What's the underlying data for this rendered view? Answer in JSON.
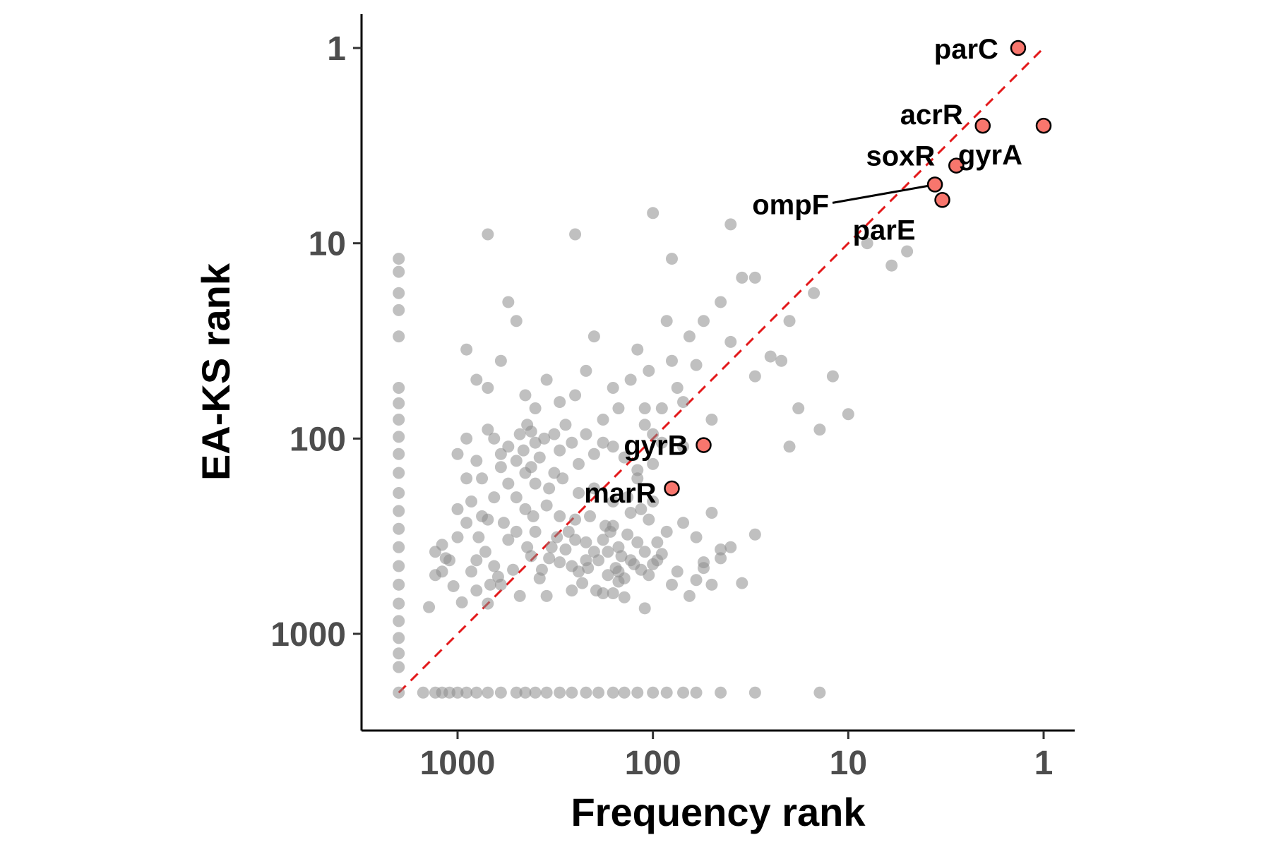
{
  "chart_data": {
    "type": "scatter",
    "title": "",
    "xlabel": "Frequency rank",
    "ylabel": "EA-KS rank",
    "x_scale": "log",
    "y_scale": "log",
    "x_reversed": true,
    "y_reversed": true,
    "xlim": [
      3000,
      0.7
    ],
    "ylim": [
      0.82,
      2000
    ],
    "x_ticks": [
      {
        "value": 1000,
        "label": "1000"
      },
      {
        "value": 100,
        "label": "100"
      },
      {
        "value": 10,
        "label": "10"
      },
      {
        "value": 1,
        "label": "1"
      }
    ],
    "y_ticks": [
      {
        "value": 1,
        "label": "1"
      },
      {
        "value": 10,
        "label": "10"
      },
      {
        "value": 100,
        "label": "100"
      },
      {
        "value": 1000,
        "label": "1000"
      }
    ],
    "grid": false,
    "legend": "none",
    "reference_line": {
      "style": "dashed",
      "color": "#e31a1c",
      "from": [
        2000,
        2000
      ],
      "to": [
        1,
        1
      ]
    },
    "highlight_color": "#f8766d",
    "background_color": "#8c8c8c",
    "highlighted_genes": [
      {
        "name": "parC",
        "x": 1.35,
        "y": 1.0
      },
      {
        "name": "acrR",
        "x": 2.05,
        "y": 2.5
      },
      {
        "name": "gyrA",
        "x": 1.0,
        "y": 2.5
      },
      {
        "name": "soxR",
        "x": 2.8,
        "y": 4.0
      },
      {
        "name": "ompF",
        "x": 3.6,
        "y": 5.0
      },
      {
        "name": "parE",
        "x": 3.3,
        "y": 6.0
      },
      {
        "name": "gyrB",
        "x": 55,
        "y": 108
      },
      {
        "name": "marR",
        "x": 80,
        "y": 180
      }
    ],
    "background_points": [
      [
        2000,
        2000
      ],
      [
        2000,
        1480
      ],
      [
        2000,
        1260
      ],
      [
        2000,
        1050
      ],
      [
        2000,
        860
      ],
      [
        2000,
        700
      ],
      [
        2000,
        560
      ],
      [
        2000,
        450
      ],
      [
        2000,
        360
      ],
      [
        2000,
        290
      ],
      [
        2000,
        235
      ],
      [
        2000,
        190
      ],
      [
        2000,
        150
      ],
      [
        2000,
        120
      ],
      [
        2000,
        98
      ],
      [
        2000,
        80
      ],
      [
        2000,
        66
      ],
      [
        2000,
        55
      ],
      [
        2000,
        30
      ],
      [
        2000,
        22
      ],
      [
        2000,
        18
      ],
      [
        2000,
        14
      ],
      [
        2000,
        12
      ],
      [
        1400,
        730
      ],
      [
        1300,
        380
      ],
      [
        1200,
        480
      ],
      [
        1100,
        420
      ],
      [
        1000,
        320
      ],
      [
        900,
        270
      ],
      [
        800,
        600
      ],
      [
        750,
        250
      ],
      [
        700,
        700
      ],
      [
        650,
        200
      ],
      [
        600,
        560
      ],
      [
        550,
        330
      ],
      [
        500,
        200
      ],
      [
        450,
        150
      ],
      [
        420,
        92
      ],
      [
        400,
        300
      ],
      [
        380,
        520
      ],
      [
        350,
        640
      ],
      [
        330,
        360
      ],
      [
        300,
        250
      ],
      [
        290,
        160
      ],
      [
        260,
        450
      ],
      [
        250,
        330
      ],
      [
        240,
        190
      ],
      [
        220,
        420
      ],
      [
        200,
        380
      ],
      [
        180,
        620
      ],
      [
        170,
        500
      ],
      [
        160,
        280
      ],
      [
        150,
        540
      ],
      [
        140,
        650
      ],
      [
        130,
        240
      ],
      [
        120,
        160
      ],
      [
        110,
        740
      ],
      [
        100,
        210
      ],
      [
        95,
        420
      ],
      [
        90,
        390
      ],
      [
        80,
        560
      ],
      [
        75,
        480
      ],
      [
        70,
        110
      ],
      [
        65,
        640
      ],
      [
        60,
        530
      ],
      [
        55,
        430
      ],
      [
        50,
        560
      ],
      [
        45,
        370
      ],
      [
        40,
        360
      ],
      [
        35,
        550
      ],
      [
        30,
        310
      ],
      [
        1300,
        500
      ],
      [
        1200,
        350
      ],
      [
        1000,
        230
      ],
      [
        900,
        160
      ],
      [
        800,
        420
      ],
      [
        700,
        260
      ],
      [
        650,
        450
      ],
      [
        600,
        120
      ],
      [
        550,
        170
      ],
      [
        500,
        300
      ],
      [
        450,
        230
      ],
      [
        420,
        400
      ],
      [
        400,
        170
      ],
      [
        350,
        220
      ],
      [
        320,
        150
      ],
      [
        300,
        430
      ],
      [
        270,
        300
      ],
      [
        250,
        260
      ],
      [
        240,
        480
      ],
      [
        220,
        340
      ],
      [
        210,
        250
      ],
      [
        200,
        180
      ],
      [
        190,
        420
      ],
      [
        180,
        330
      ],
      [
        170,
        380
      ],
      [
        165,
        300
      ],
      [
        160,
        210
      ],
      [
        155,
        460
      ],
      [
        150,
        360
      ],
      [
        145,
        400
      ],
      [
        140,
        520
      ],
      [
        135,
        310
      ],
      [
        130,
        420
      ],
      [
        125,
        440
      ],
      [
        120,
        340
      ],
      [
        115,
        470
      ],
      [
        110,
        380
      ],
      [
        105,
        500
      ],
      [
        100,
        440
      ],
      [
        1150,
        410
      ],
      [
        1050,
        570
      ],
      [
        950,
        690
      ],
      [
        850,
        480
      ],
      [
        780,
        320
      ],
      [
        720,
        380
      ],
      [
        680,
        560
      ],
      [
        620,
        510
      ],
      [
        580,
        270
      ],
      [
        520,
        470
      ],
      [
        480,
        640
      ],
      [
        440,
        360
      ],
      [
        410,
        250
      ],
      [
        370,
        470
      ],
      [
        340,
        410
      ],
      [
        310,
        320
      ],
      [
        280,
        370
      ],
      [
        260,
        600
      ],
      [
        230,
        550
      ],
      [
        215,
        460
      ],
      [
        195,
        600
      ],
      [
        175,
        280
      ],
      [
        160,
        620
      ],
      [
        150,
        480
      ],
      [
        135,
        200
      ],
      [
        115,
        230
      ],
      [
        105,
        260
      ],
      [
        95,
        340
      ],
      [
        85,
        300
      ],
      [
        70,
        270
      ],
      [
        60,
        320
      ],
      [
        55,
        460
      ],
      [
        50,
        240
      ],
      [
        45,
        410
      ],
      [
        1000,
        120
      ],
      [
        900,
        100
      ],
      [
        850,
        210
      ],
      [
        800,
        130
      ],
      [
        750,
        160
      ],
      [
        700,
        90
      ],
      [
        650,
        100
      ],
      [
        600,
        140
      ],
      [
        550,
        110
      ],
      [
        500,
        130
      ],
      [
        480,
        95
      ],
      [
        460,
        115
      ],
      [
        440,
        85
      ],
      [
        420,
        140
      ],
      [
        400,
        105
      ],
      [
        380,
        125
      ],
      [
        360,
        100
      ],
      [
        340,
        180
      ],
      [
        320,
        95
      ],
      [
        300,
        115
      ],
      [
        280,
        85
      ],
      [
        260,
        105
      ],
      [
        240,
        135
      ],
      [
        220,
        95
      ],
      [
        200,
        120
      ],
      [
        180,
        105
      ],
      [
        160,
        110
      ],
      [
        140,
        125
      ],
      [
        120,
        145
      ],
      [
        110,
        85
      ],
      [
        100,
        135
      ],
      [
        90,
        105
      ],
      [
        130,
        50
      ],
      [
        120,
        35
      ],
      [
        110,
        70
      ],
      [
        105,
        45
      ],
      [
        100,
        95
      ],
      [
        90,
        70
      ],
      [
        85,
        25
      ],
      [
        80,
        40
      ],
      [
        75,
        55
      ],
      [
        70,
        65
      ],
      [
        65,
        30
      ],
      [
        60,
        42
      ],
      [
        55,
        25
      ],
      [
        50,
        80
      ],
      [
        45,
        20
      ],
      [
        40,
        32
      ],
      [
        35,
        15
      ],
      [
        30,
        48
      ],
      [
        25,
        38
      ],
      [
        22,
        40
      ],
      [
        20,
        110
      ],
      [
        18,
        70
      ],
      [
        15,
        18
      ],
      [
        12,
        48
      ],
      [
        10,
        75
      ],
      [
        8,
        10
      ],
      [
        6,
        13
      ],
      [
        5,
        11
      ],
      [
        14,
        90
      ],
      [
        900,
        35
      ],
      [
        800,
        50
      ],
      [
        700,
        55
      ],
      [
        600,
        40
      ],
      [
        550,
        20
      ],
      [
        500,
        25
      ],
      [
        450,
        60
      ],
      [
        400,
        70
      ],
      [
        350,
        50
      ],
      [
        300,
        65
      ],
      [
        250,
        60
      ],
      [
        220,
        45
      ],
      [
        200,
        30
      ],
      [
        180,
        80
      ],
      [
        160,
        55
      ],
      [
        150,
        70
      ],
      [
        1500,
        2000
      ],
      [
        1300,
        2000
      ],
      [
        1200,
        2000
      ],
      [
        1100,
        2000
      ],
      [
        1000,
        2000
      ],
      [
        900,
        2000
      ],
      [
        800,
        2000
      ],
      [
        700,
        2000
      ],
      [
        600,
        2000
      ],
      [
        500,
        2000
      ],
      [
        450,
        2000
      ],
      [
        400,
        2000
      ],
      [
        350,
        2000
      ],
      [
        300,
        2000
      ],
      [
        260,
        2000
      ],
      [
        220,
        2000
      ],
      [
        190,
        2000
      ],
      [
        160,
        2000
      ],
      [
        140,
        2000
      ],
      [
        120,
        2000
      ],
      [
        100,
        2000
      ],
      [
        85,
        2000
      ],
      [
        70,
        2000
      ],
      [
        60,
        2000
      ],
      [
        45,
        2000
      ],
      [
        30,
        2000
      ],
      [
        14,
        2000
      ],
      [
        100,
        7
      ],
      [
        80,
        12
      ],
      [
        250,
        9
      ],
      [
        700,
        9
      ],
      [
        40,
        8
      ],
      [
        30,
        15
      ],
      [
        20,
        25
      ]
    ]
  }
}
